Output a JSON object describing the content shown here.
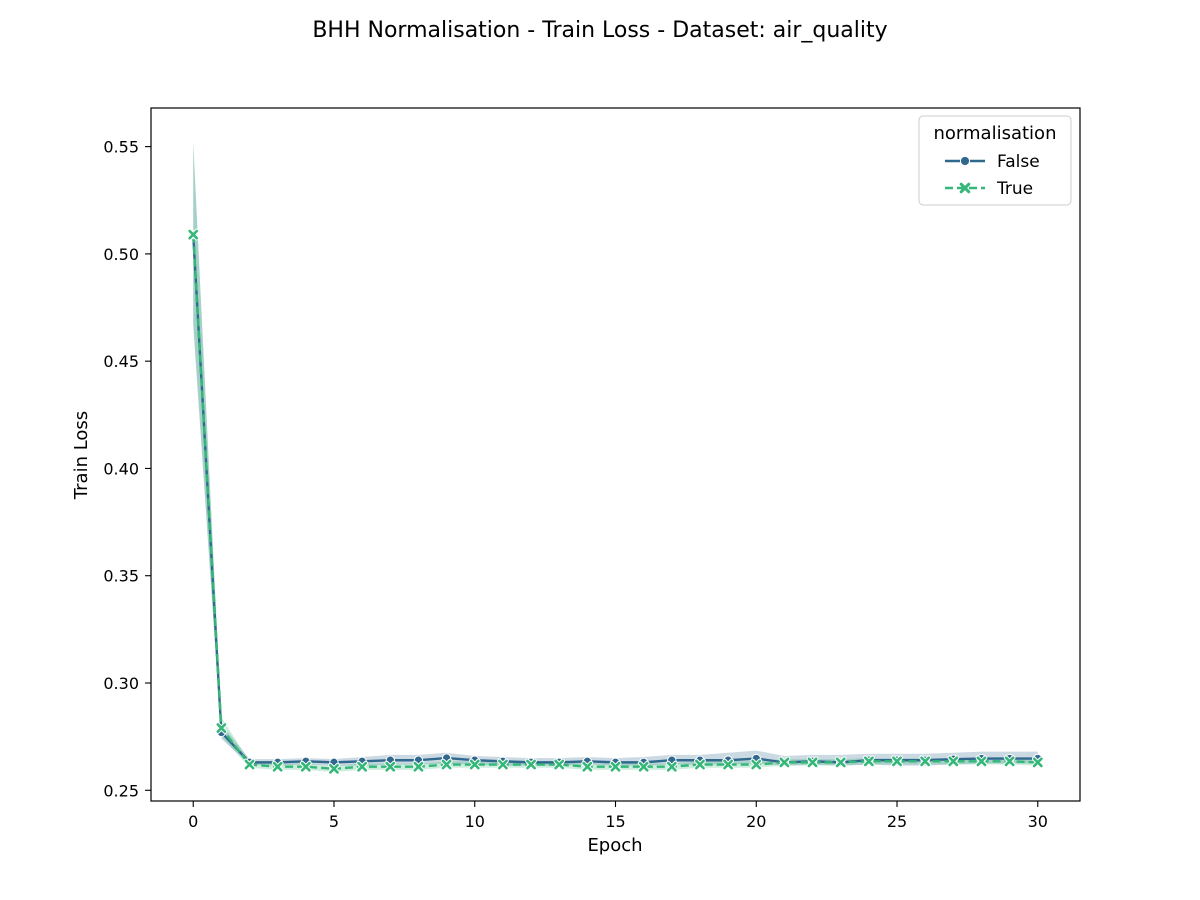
{
  "chart_data": {
    "type": "line",
    "title": "BHH Normalisation - Train Loss - Dataset: air_quality",
    "xlabel": "Epoch",
    "ylabel": "Train Loss",
    "xlim": [
      -1.5,
      31.5
    ],
    "ylim": [
      0.245,
      0.568
    ],
    "xticks": [
      0,
      5,
      10,
      15,
      20,
      25,
      30
    ],
    "yticks": [
      0.25,
      0.3,
      0.35,
      0.4,
      0.45,
      0.5,
      0.55
    ],
    "xtick_labels": [
      "0",
      "5",
      "10",
      "15",
      "20",
      "25",
      "30"
    ],
    "ytick_labels": [
      "0.25",
      "0.30",
      "0.35",
      "0.40",
      "0.45",
      "0.50",
      "0.55"
    ],
    "grid": false,
    "legend": {
      "title": "normalisation",
      "placement": "top-right"
    },
    "x": [
      0,
      1,
      2,
      3,
      4,
      5,
      6,
      7,
      8,
      9,
      10,
      11,
      12,
      13,
      14,
      15,
      16,
      17,
      18,
      19,
      20,
      21,
      22,
      23,
      24,
      25,
      26,
      27,
      28,
      29,
      30
    ],
    "series": [
      {
        "name": "False",
        "color": "#31688e",
        "marker": "circle",
        "linestyle": "solid",
        "values": [
          0.509,
          0.277,
          0.263,
          0.263,
          0.2635,
          0.263,
          0.2635,
          0.264,
          0.264,
          0.265,
          0.264,
          0.2635,
          0.263,
          0.263,
          0.2635,
          0.263,
          0.263,
          0.264,
          0.264,
          0.264,
          0.2648,
          0.263,
          0.2635,
          0.263,
          0.264,
          0.264,
          0.264,
          0.2645,
          0.2648,
          0.2648,
          0.2648
        ],
        "lower": [
          0.468,
          0.274,
          0.262,
          0.2615,
          0.262,
          0.2615,
          0.2615,
          0.262,
          0.262,
          0.2625,
          0.262,
          0.2615,
          0.2615,
          0.2615,
          0.262,
          0.2615,
          0.2615,
          0.262,
          0.262,
          0.262,
          0.2625,
          0.2615,
          0.262,
          0.2615,
          0.262,
          0.2615,
          0.2615,
          0.262,
          0.2625,
          0.2625,
          0.2625
        ],
        "upper": [
          0.552,
          0.281,
          0.2645,
          0.2645,
          0.265,
          0.2645,
          0.2655,
          0.2665,
          0.2665,
          0.2675,
          0.266,
          0.2655,
          0.265,
          0.265,
          0.2655,
          0.265,
          0.2655,
          0.2665,
          0.2665,
          0.2675,
          0.2685,
          0.266,
          0.2665,
          0.2665,
          0.267,
          0.267,
          0.267,
          0.2675,
          0.268,
          0.268,
          0.268
        ]
      },
      {
        "name": "True",
        "color": "#35b779",
        "marker": "x",
        "linestyle": "dashed",
        "values": [
          0.509,
          0.279,
          0.262,
          0.261,
          0.261,
          0.26,
          0.261,
          0.261,
          0.261,
          0.262,
          0.262,
          0.262,
          0.262,
          0.262,
          0.261,
          0.261,
          0.261,
          0.261,
          0.262,
          0.262,
          0.262,
          0.263,
          0.263,
          0.263,
          0.2635,
          0.2635,
          0.2635,
          0.2635,
          0.2635,
          0.2635,
          0.263
        ],
        "lower": [
          0.466,
          0.275,
          0.2605,
          0.2595,
          0.2595,
          0.2585,
          0.2595,
          0.2595,
          0.2595,
          0.2605,
          0.2605,
          0.2605,
          0.2605,
          0.2605,
          0.2595,
          0.2595,
          0.2595,
          0.2595,
          0.2605,
          0.2605,
          0.2605,
          0.2615,
          0.2615,
          0.2615,
          0.262,
          0.262,
          0.262,
          0.262,
          0.262,
          0.262,
          0.2615
        ],
        "upper": [
          0.552,
          0.284,
          0.2635,
          0.2625,
          0.2625,
          0.2615,
          0.2625,
          0.2625,
          0.2625,
          0.2635,
          0.2635,
          0.2635,
          0.2635,
          0.2635,
          0.2625,
          0.2625,
          0.2625,
          0.2625,
          0.2635,
          0.2635,
          0.2635,
          0.2645,
          0.2645,
          0.2645,
          0.265,
          0.265,
          0.265,
          0.265,
          0.265,
          0.265,
          0.2645
        ]
      }
    ]
  }
}
